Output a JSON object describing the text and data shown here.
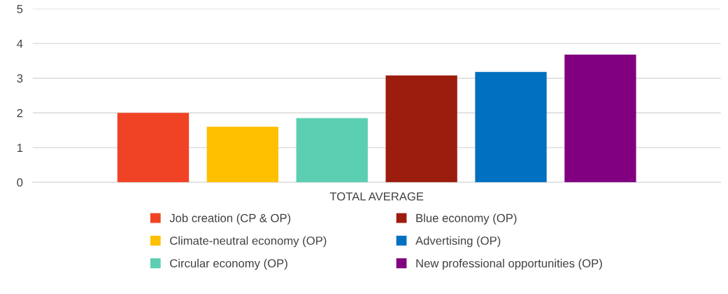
{
  "chart_data": {
    "type": "bar",
    "categories": [
      "TOTAL AVERAGE"
    ],
    "series": [
      {
        "name": "Job creation (CP & OP)",
        "color": "#f04325",
        "values": [
          2.0
        ]
      },
      {
        "name": "Climate-neutral economy (OP)",
        "color": "#ffc000",
        "values": [
          1.6
        ]
      },
      {
        "name": "Circular economy (OP)",
        "color": "#5ccfb3",
        "values": [
          1.85
        ]
      },
      {
        "name": "Blue economy (OP)",
        "color": "#9c1c0e",
        "values": [
          3.08
        ]
      },
      {
        "name": "Advertising (OP)",
        "color": "#0070c0",
        "values": [
          3.18
        ]
      },
      {
        "name": "New professional opportunities (OP)",
        "color": "#800080",
        "values": [
          3.68
        ]
      }
    ],
    "ylim": [
      0,
      5
    ],
    "yticks": [
      0,
      1,
      2,
      3,
      4,
      5
    ],
    "grid": "y",
    "legend": "bottom"
  }
}
